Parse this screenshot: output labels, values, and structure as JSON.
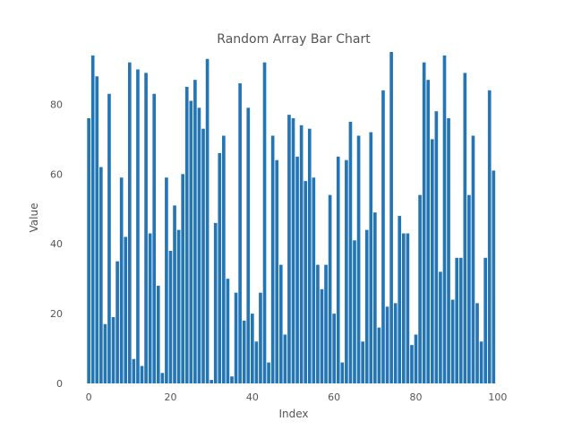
{
  "chart_data": {
    "type": "bar",
    "title": "Random Array Bar Chart",
    "xlabel": "Index",
    "ylabel": "Value",
    "xlim": [
      -2,
      102
    ],
    "ylim": [
      0,
      95
    ],
    "x_ticks": [
      0,
      20,
      40,
      60,
      80,
      100
    ],
    "y_ticks": [
      0,
      20,
      40,
      60,
      80
    ],
    "grid": false,
    "bar_color": "#2475b4",
    "x": [
      0,
      1,
      2,
      3,
      4,
      5,
      6,
      7,
      8,
      9,
      10,
      11,
      12,
      13,
      14,
      15,
      16,
      17,
      18,
      19,
      20,
      21,
      22,
      23,
      24,
      25,
      26,
      27,
      28,
      29,
      30,
      31,
      32,
      33,
      34,
      35,
      36,
      37,
      38,
      39,
      40,
      41,
      42,
      43,
      44,
      45,
      46,
      47,
      48,
      49,
      50,
      51,
      52,
      53,
      54,
      55,
      56,
      57,
      58,
      59,
      60,
      61,
      62,
      63,
      64,
      65,
      66,
      67,
      68,
      69,
      70,
      71,
      72,
      73,
      74,
      75,
      76,
      77,
      78,
      79,
      80,
      81,
      82,
      83,
      84,
      85,
      86,
      87,
      88,
      89,
      90,
      91,
      92,
      93,
      94,
      95,
      96,
      97,
      98,
      99
    ],
    "values": [
      76,
      94,
      88,
      62,
      17,
      83,
      19,
      35,
      59,
      42,
      92,
      7,
      90,
      5,
      89,
      43,
      83,
      28,
      3,
      59,
      38,
      51,
      44,
      60,
      85,
      81,
      87,
      79,
      73,
      93,
      1,
      46,
      66,
      71,
      30,
      2,
      26,
      86,
      18,
      79,
      20,
      12,
      26,
      92,
      6,
      71,
      64,
      34,
      14,
      77,
      76,
      65,
      74,
      58,
      73,
      59,
      34,
      27,
      34,
      54,
      20,
      65,
      6,
      64,
      75,
      41,
      71,
      12,
      44,
      72,
      49,
      16,
      84,
      22,
      95,
      23,
      48,
      43,
      43,
      11,
      14,
      54,
      92,
      87,
      70,
      78,
      32,
      94,
      76,
      24,
      36,
      36,
      89,
      54,
      71,
      23,
      12,
      36,
      84,
      61
    ]
  }
}
